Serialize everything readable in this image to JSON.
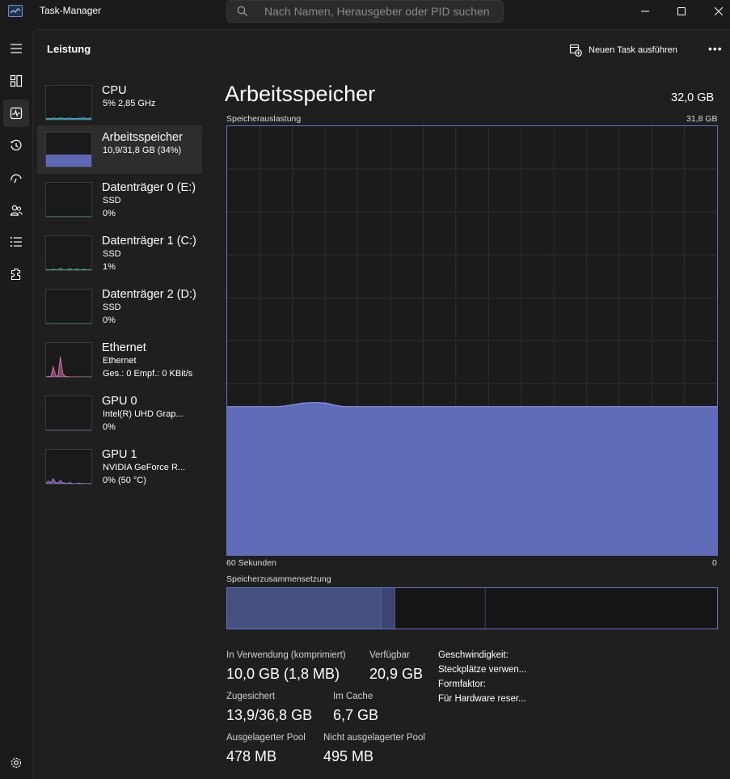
{
  "window": {
    "title": "Task-Manager",
    "search_placeholder": "Nach Namen, Herausgeber oder PID suchen"
  },
  "header": {
    "page_title": "Leistung",
    "new_task_label": "Neuen Task ausführen",
    "more_label": "•••"
  },
  "nav": {
    "items": [
      "menu-icon",
      "processes-icon",
      "performance-icon",
      "app-history-icon",
      "startup-apps-icon",
      "users-icon",
      "details-icon",
      "services-icon",
      "settings-icon"
    ],
    "active": "performance-icon"
  },
  "resources": [
    {
      "name": "CPU",
      "line1": "5% 2,85 GHz",
      "line2": "",
      "color": "#3fb6c8",
      "history": [
        3,
        4,
        3,
        5,
        4,
        3,
        6,
        4,
        3,
        4,
        5,
        3,
        4,
        3,
        5,
        4,
        6,
        3,
        4,
        5
      ]
    },
    {
      "name": "Arbeitsspeicher",
      "line1": "10,9/31,8 GB (34%)",
      "line2": "",
      "color": "#6a78d0",
      "history": [
        34,
        34,
        34,
        34,
        34,
        34,
        34,
        34,
        34,
        34,
        34,
        34,
        34,
        34,
        34,
        34,
        34,
        34,
        34,
        34
      ]
    },
    {
      "name": "Datenträger 0 (E:)",
      "line1": "SSD",
      "line2": "0%",
      "color": "#45a08a",
      "history": [
        0,
        0,
        0,
        0,
        0,
        0,
        0,
        0,
        0,
        0,
        0,
        0,
        0,
        0,
        0,
        0,
        0,
        0,
        0,
        0
      ]
    },
    {
      "name": "Datenträger 1 (C:)",
      "line1": "SSD",
      "line2": "1%",
      "color": "#45a08a",
      "history": [
        1,
        2,
        1,
        3,
        2,
        1,
        6,
        2,
        1,
        2,
        5,
        1,
        2,
        4,
        1,
        2,
        3,
        1,
        2,
        1
      ]
    },
    {
      "name": "Datenträger 2 (D:)",
      "line1": "SSD",
      "line2": "0%",
      "color": "#45a08a",
      "history": [
        0,
        0,
        0,
        0,
        0,
        0,
        0,
        0,
        0,
        0,
        0,
        0,
        0,
        0,
        0,
        0,
        0,
        0,
        0,
        0
      ]
    },
    {
      "name": "Ethernet",
      "line1": "Ethernet",
      "line2": "Ges.: 0 Empf.: 0 KBit/s",
      "color": "#c870a8",
      "history": [
        0,
        2,
        1,
        30,
        5,
        2,
        60,
        10,
        2,
        1,
        0,
        0,
        0,
        0,
        0,
        0,
        0,
        0,
        0,
        0
      ]
    },
    {
      "name": "GPU 0",
      "line1": "Intel(R) UHD Grap...",
      "line2": "0%",
      "color": "#9a78d0",
      "history": [
        0,
        0,
        0,
        0,
        0,
        0,
        0,
        0,
        0,
        0,
        0,
        0,
        0,
        0,
        0,
        0,
        0,
        0,
        0,
        0
      ]
    },
    {
      "name": "GPU 1",
      "line1": "NVIDIA GeForce R...",
      "line2": "0%  (50 °C)",
      "color": "#9a78d0",
      "history": [
        2,
        8,
        3,
        15,
        4,
        2,
        10,
        3,
        2,
        1,
        3,
        1,
        0,
        1,
        2,
        0,
        1,
        0,
        1,
        0
      ]
    }
  ],
  "main": {
    "title": "Arbeitsspeicher",
    "total": "32,0 GB",
    "usage_label": "Speicherauslastung",
    "usage_max": "31,8 GB",
    "time_left": "60 Sekunden",
    "time_right": "0",
    "composition_label": "Speicherzusammensetzung"
  },
  "chart_data": {
    "type": "area",
    "title": "Speicherauslastung",
    "ylim": [
      0,
      31.8
    ],
    "x_range": [
      60,
      0
    ],
    "x_label_left": "60 Sekunden",
    "x_label_right": "0",
    "grid": true,
    "series": [
      {
        "values": [
          11.0,
          11.0,
          11.0,
          11.0,
          11.0,
          11.0,
          11.0,
          11.05,
          11.15,
          11.25,
          11.3,
          11.3,
          11.25,
          11.1,
          11.0,
          11.0,
          11.0,
          11.0,
          11.0,
          11.0,
          11.0,
          11.0,
          11.0,
          11.0,
          11.0,
          11.0,
          11.0,
          11.0,
          11.0,
          11.0,
          11.0,
          11.0,
          11.0,
          11.0,
          11.0,
          11.0,
          11.0,
          11.0,
          11.0,
          11.0,
          11.0,
          11.0,
          11.0,
          11.0,
          11.0,
          11.0,
          11.0,
          11.0,
          11.0,
          11.0,
          11.0,
          11.0,
          11.0,
          11.0,
          11.0,
          11.0,
          11.0,
          11.0,
          11.0,
          11.0
        ]
      }
    ]
  },
  "composition": [
    {
      "name": "in-use",
      "fraction": 0.315,
      "color": "#45507e"
    },
    {
      "name": "modified",
      "fraction": 0.028,
      "color": "#3c4570"
    },
    {
      "name": "standby",
      "fraction": 0.184,
      "color": "#161616"
    },
    {
      "name": "free",
      "fraction": 0.473,
      "color": "#161616"
    }
  ],
  "stats": {
    "in_use_label": "In Verwendung (komprimiert)",
    "in_use_value": "10,0 GB (1,8 MB)",
    "available_label": "Verfügbar",
    "available_value": "20,9 GB",
    "committed_label": "Zugesichert",
    "committed_value": "13,9/36,8 GB",
    "cached_label": "Im Cache",
    "cached_value": "6,7 GB",
    "paged_label": "Ausgelagerter Pool",
    "paged_value": "478 MB",
    "nonpaged_label": "Nicht ausgelagerter Pool",
    "nonpaged_value": "495 MB"
  },
  "details": [
    "Geschwindigkeit:",
    "Steckplätze verwen...",
    "Formfaktor:",
    "Für Hardware reser..."
  ]
}
